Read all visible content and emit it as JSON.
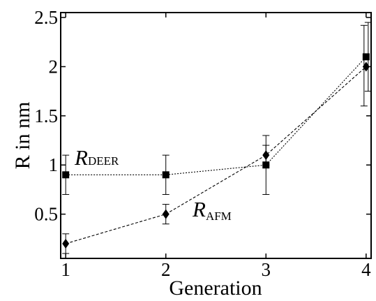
{
  "chart_data": {
    "type": "line",
    "xlabel": "Generation",
    "ylabel": "R in nm",
    "xlim": [
      0.95,
      4.05
    ],
    "ylim": [
      0.05,
      2.55
    ],
    "x_ticks": [
      "1",
      "2",
      "3",
      "4"
    ],
    "y_ticks": [
      "0.5",
      "1",
      "1.5",
      "2",
      "2.5"
    ],
    "grid": false,
    "legend": "none",
    "series": [
      {
        "name": "R",
        "name_sub": "DEER",
        "marker": "square",
        "line": "dotted",
        "color": "#000000",
        "x": [
          1,
          2,
          3,
          4
        ],
        "y": [
          0.9,
          0.9,
          1.0,
          2.1
        ],
        "err_low": [
          0.7,
          0.7,
          0.7,
          1.75
        ],
        "err_high": [
          1.1,
          1.1,
          1.3,
          2.45
        ]
      },
      {
        "name": "R",
        "name_sub": "AFM",
        "marker": "diamond",
        "line": "dashed",
        "color": "#000000",
        "x": [
          1,
          2,
          3,
          4
        ],
        "y": [
          0.2,
          0.5,
          1.1,
          2.0
        ],
        "err_low": [
          0.1,
          0.4,
          1.0,
          1.6
        ],
        "err_high": [
          0.3,
          0.6,
          1.2,
          2.42
        ]
      }
    ]
  }
}
